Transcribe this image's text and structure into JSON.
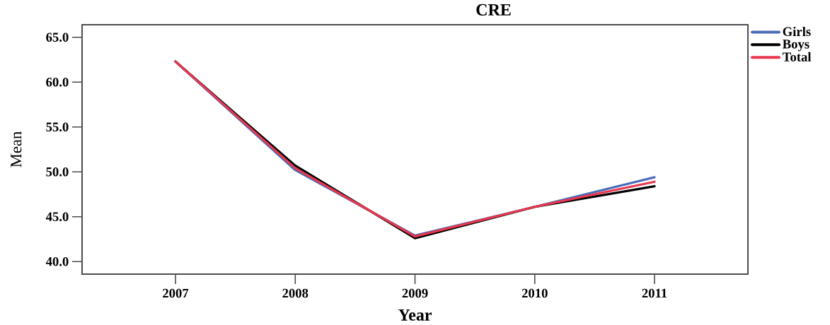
{
  "chart_data": {
    "type": "line",
    "title": "CRE",
    "xlabel": "Year",
    "ylabel": "Mean",
    "categories": [
      "2007",
      "2008",
      "2009",
      "2010",
      "2011"
    ],
    "series": [
      {
        "name": "Girls",
        "color": "#4a6bb8",
        "values": [
          62.3,
          50.2,
          42.9,
          46.1,
          49.4
        ]
      },
      {
        "name": "Boys",
        "color": "#000000",
        "values": [
          62.3,
          50.7,
          42.6,
          46.1,
          48.4
        ]
      },
      {
        "name": "Total",
        "color": "#e8384f",
        "values": [
          62.3,
          50.4,
          42.8,
          46.1,
          48.9
        ]
      }
    ],
    "ylim": [
      38.6,
      66.4
    ],
    "yticks": [
      {
        "value": 40,
        "label": "40.0"
      },
      {
        "value": 45,
        "label": "45.0"
      },
      {
        "value": 50,
        "label": "50.0"
      },
      {
        "value": 55,
        "label": "55.0"
      },
      {
        "value": 60,
        "label": "60.0"
      },
      {
        "value": 65,
        "label": "65.0"
      }
    ],
    "legend": "top right",
    "line_style": "solid"
  }
}
